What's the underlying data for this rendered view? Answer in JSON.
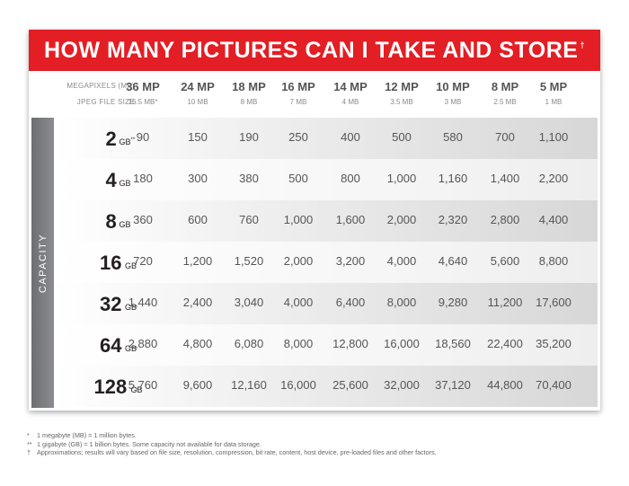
{
  "title": "HOW MANY PICTURES CAN I TAKE AND STORE",
  "title_mark": "†",
  "header": {
    "megapixels_label": "MEGAPIXELS (MP)",
    "jpeg_label": "JPEG FILE SIZE",
    "columns": [
      {
        "mp": "36 MP",
        "size": "16.5 MB*"
      },
      {
        "mp": "24 MP",
        "size": "10 MB"
      },
      {
        "mp": "18 MP",
        "size": "8 MB"
      },
      {
        "mp": "16 MP",
        "size": "7 MB"
      },
      {
        "mp": "14 MP",
        "size": "4 MB"
      },
      {
        "mp": "12 MP",
        "size": "3.5 MB"
      },
      {
        "mp": "10 MP",
        "size": "3 MB"
      },
      {
        "mp": "8 MP",
        "size": "2.5 MB"
      },
      {
        "mp": "5 MP",
        "size": "1 MB"
      }
    ]
  },
  "capacity_label": "CAPACITY",
  "rows": [
    {
      "cap": "2",
      "unit": "GB",
      "mark": "**",
      "values": [
        "90",
        "150",
        "190",
        "250",
        "400",
        "500",
        "580",
        "700",
        "1,100"
      ]
    },
    {
      "cap": "4",
      "unit": "GB",
      "mark": "",
      "values": [
        "180",
        "300",
        "380",
        "500",
        "800",
        "1,000",
        "1,160",
        "1,400",
        "2,200"
      ]
    },
    {
      "cap": "8",
      "unit": "GB",
      "mark": "",
      "values": [
        "360",
        "600",
        "760",
        "1,000",
        "1,600",
        "2,000",
        "2,320",
        "2,800",
        "4,400"
      ]
    },
    {
      "cap": "16",
      "unit": "GB",
      "mark": "",
      "values": [
        "720",
        "1,200",
        "1,520",
        "2,000",
        "3,200",
        "4,000",
        "4,640",
        "5,600",
        "8,800"
      ]
    },
    {
      "cap": "32",
      "unit": "GB",
      "mark": "",
      "values": [
        "1,440",
        "2,400",
        "3,040",
        "4,000",
        "6,400",
        "8,000",
        "9,280",
        "11,200",
        "17,600"
      ]
    },
    {
      "cap": "64",
      "unit": "GB",
      "mark": "",
      "values": [
        "2,880",
        "4,800",
        "6,080",
        "8,000",
        "12,800",
        "16,000",
        "18,560",
        "22,400",
        "35,200"
      ]
    },
    {
      "cap": "128",
      "unit": "GB",
      "mark": "",
      "values": [
        "5,760",
        "9,600",
        "12,160",
        "16,000",
        "25,600",
        "32,000",
        "37,120",
        "44,800",
        "70,400"
      ]
    }
  ],
  "footnotes": [
    {
      "mark": "*",
      "text": "1 megabyte (MB) = 1 million bytes."
    },
    {
      "mark": "**",
      "text": "1 gigabyte (GB) = 1 billion bytes. Some capacity not available for data storage."
    },
    {
      "mark": "†",
      "text": "Approximations; results will vary based on file size, resolution, compression, bit rate, content, host device, pre-loaded files and other factors."
    }
  ]
}
